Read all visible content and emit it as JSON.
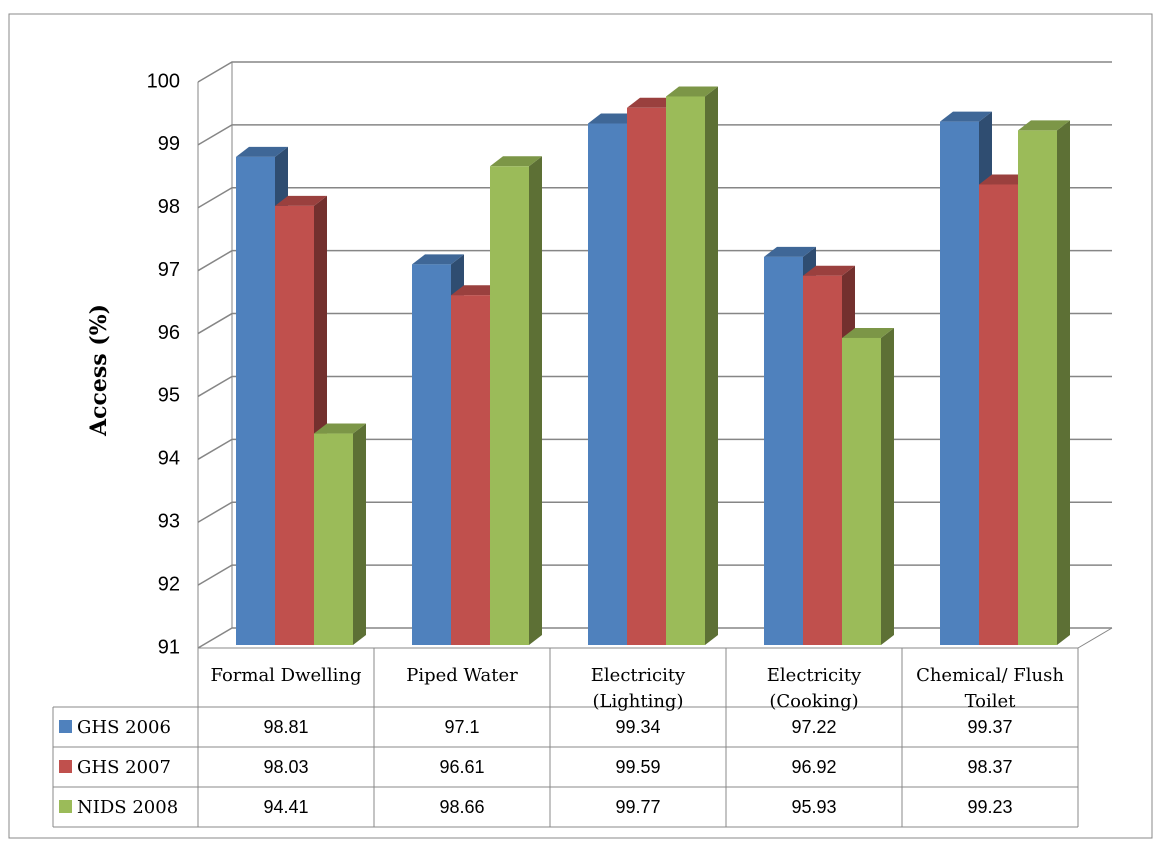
{
  "chart_data": {
    "type": "bar3d",
    "y_label": "Access (%)",
    "categories": [
      "Formal Dwelling",
      "Piped Water",
      "Electricity (Lighting)",
      "Electricity (Cooking)",
      "Chemical/ Flush Toilet"
    ],
    "series": [
      {
        "name": "GHS 2006",
        "color": "#4f81bd",
        "values": [
          98.81,
          97.1,
          99.34,
          97.22,
          99.37
        ]
      },
      {
        "name": "GHS 2007",
        "color": "#c0504d",
        "values": [
          98.03,
          96.61,
          99.59,
          96.92,
          98.37
        ]
      },
      {
        "name": "NIDS 2008",
        "color": "#9bbb59",
        "values": [
          94.41,
          98.66,
          99.77,
          95.93,
          99.23
        ]
      }
    ],
    "ylim": [
      91,
      100
    ],
    "yticks": [
      91,
      92,
      93,
      94,
      95,
      96,
      97,
      98,
      99,
      100
    ],
    "grid": true,
    "data_table": true
  }
}
